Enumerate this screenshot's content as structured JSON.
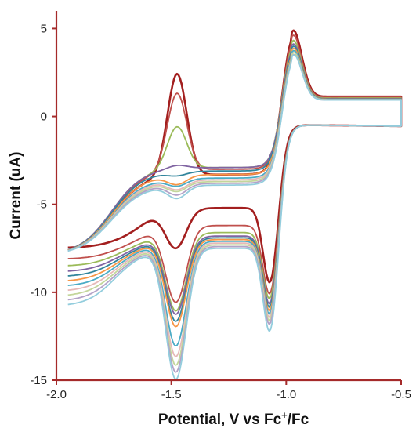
{
  "chart_data": {
    "type": "line",
    "title": "",
    "xlabel": "Potential, V vs Fc⁺/Fc",
    "ylabel": "Current (uA)",
    "xlim": [
      -2.0,
      -0.5
    ],
    "ylim": [
      -15,
      6
    ],
    "x_ticks": [
      -2.0,
      -1.5,
      -1.0,
      -0.5
    ],
    "x_tick_labels": [
      "-2.0",
      "-1.5",
      "-1.0",
      "-0.5"
    ],
    "y_ticks": [
      5,
      0,
      -5,
      -10,
      -15
    ],
    "y_tick_labels": [
      "5",
      "0",
      "-5",
      "-10",
      "-15"
    ],
    "grid": false,
    "legend": "none",
    "axis_color": "#a52a2a",
    "scan_start": -1.95,
    "scan_vertex": -0.5,
    "series": [
      {
        "color": "#a31f1f",
        "ic": 2.5,
        "ib": 2.2,
        "ic_base": -3.3,
        "ia1": -7.4,
        "ia1_base": -5.2,
        "ia2": -9.7,
        "rc": 1.0
      },
      {
        "color": "#c0504d",
        "ic": 1.4,
        "ib": 1.9,
        "ic_base": -3.0,
        "ia1": -10.5,
        "ia1_base": -6.2,
        "ia2": -10.4,
        "rc": 1.4
      },
      {
        "color": "#9bbb59",
        "ic": -0.5,
        "ib": 1.6,
        "ic_base": -2.9,
        "ia1": -11.0,
        "ia1_base": -6.6,
        "ia2": -10.7,
        "rc": 1.8
      },
      {
        "color": "#8064a2",
        "ic": -2.7,
        "ib": 1.4,
        "ic_base": -2.9,
        "ia1": -11.2,
        "ia1_base": -6.8,
        "ia2": -11.0,
        "rc": 2.2
      },
      {
        "color": "#31859c",
        "ic": -3.3,
        "ib": 1.3,
        "ic_base": -3.1,
        "ia1": -11.6,
        "ia1_base": -6.9,
        "ia2": -11.2,
        "rc": 2.6
      },
      {
        "color": "#f79646",
        "ic": -3.8,
        "ib": 1.2,
        "ic_base": -3.3,
        "ia1": -11.9,
        "ia1_base": -7.0,
        "ia2": -11.4,
        "rc": 3.0
      },
      {
        "color": "#4bacc6",
        "ic": -3.9,
        "ib": 1.1,
        "ic_base": -3.5,
        "ia1": -13.0,
        "ia1_base": -7.1,
        "ia2": -11.6,
        "rc": 3.4
      },
      {
        "color": "#e6b9b8",
        "ic": -4.1,
        "ib": 1.0,
        "ic_base": -3.6,
        "ia1": -13.6,
        "ia1_base": -7.2,
        "ia2": -11.8,
        "rc": 3.8
      },
      {
        "color": "#c3d69b",
        "ic": -4.2,
        "ib": 1.0,
        "ic_base": -3.7,
        "ia1": -14.1,
        "ia1_base": -7.3,
        "ia2": -12.0,
        "rc": 4.2
      },
      {
        "color": "#b3a2c7",
        "ic": -4.4,
        "ib": 0.9,
        "ic_base": -3.8,
        "ia1": -14.5,
        "ia1_base": -7.4,
        "ia2": -12.2,
        "rc": 4.6
      },
      {
        "color": "#93cddd",
        "ic": -4.6,
        "ib": 0.9,
        "ic_base": -3.9,
        "ia1": -14.9,
        "ia1_base": -7.5,
        "ia2": -12.6,
        "rc": 5.0
      }
    ]
  }
}
